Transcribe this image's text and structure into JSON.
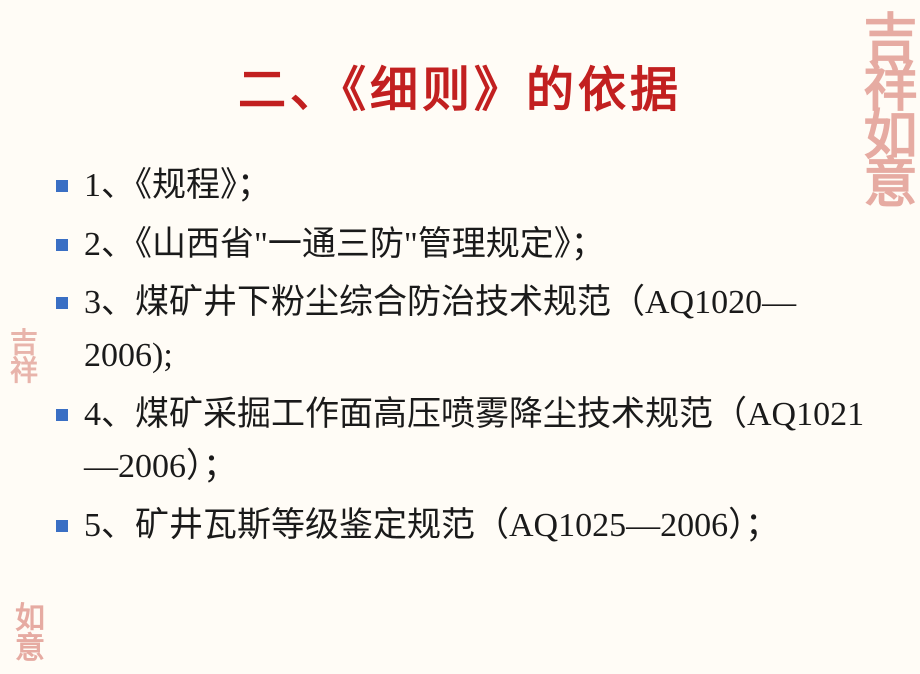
{
  "slide": {
    "title": "二、《细则》的依据",
    "title_color": "#c22020",
    "title_fontsize": 48,
    "bullet_color": "#3a6fc4",
    "body_color": "#1a1a1a",
    "body_fontsize": 34,
    "background_color": "#fffcf6",
    "items": [
      "1、《规程》；",
      "2、《山西省\"一通三防\"管理规定》；",
      "3、煤矿井下粉尘综合防治技术规范（AQ1020—2006);",
      "4、煤矿采掘工作面高压喷雾降尘技术规范（AQ1021—2006）；",
      "5、矿井瓦斯等级鉴定规范（AQ1025—2006）；"
    ]
  },
  "decor": {
    "seal_top_right": "吉祥如意",
    "seal_mid_left": "吉祥",
    "seal_bottom_left": "如意",
    "seal_color": "#c84a3e"
  }
}
